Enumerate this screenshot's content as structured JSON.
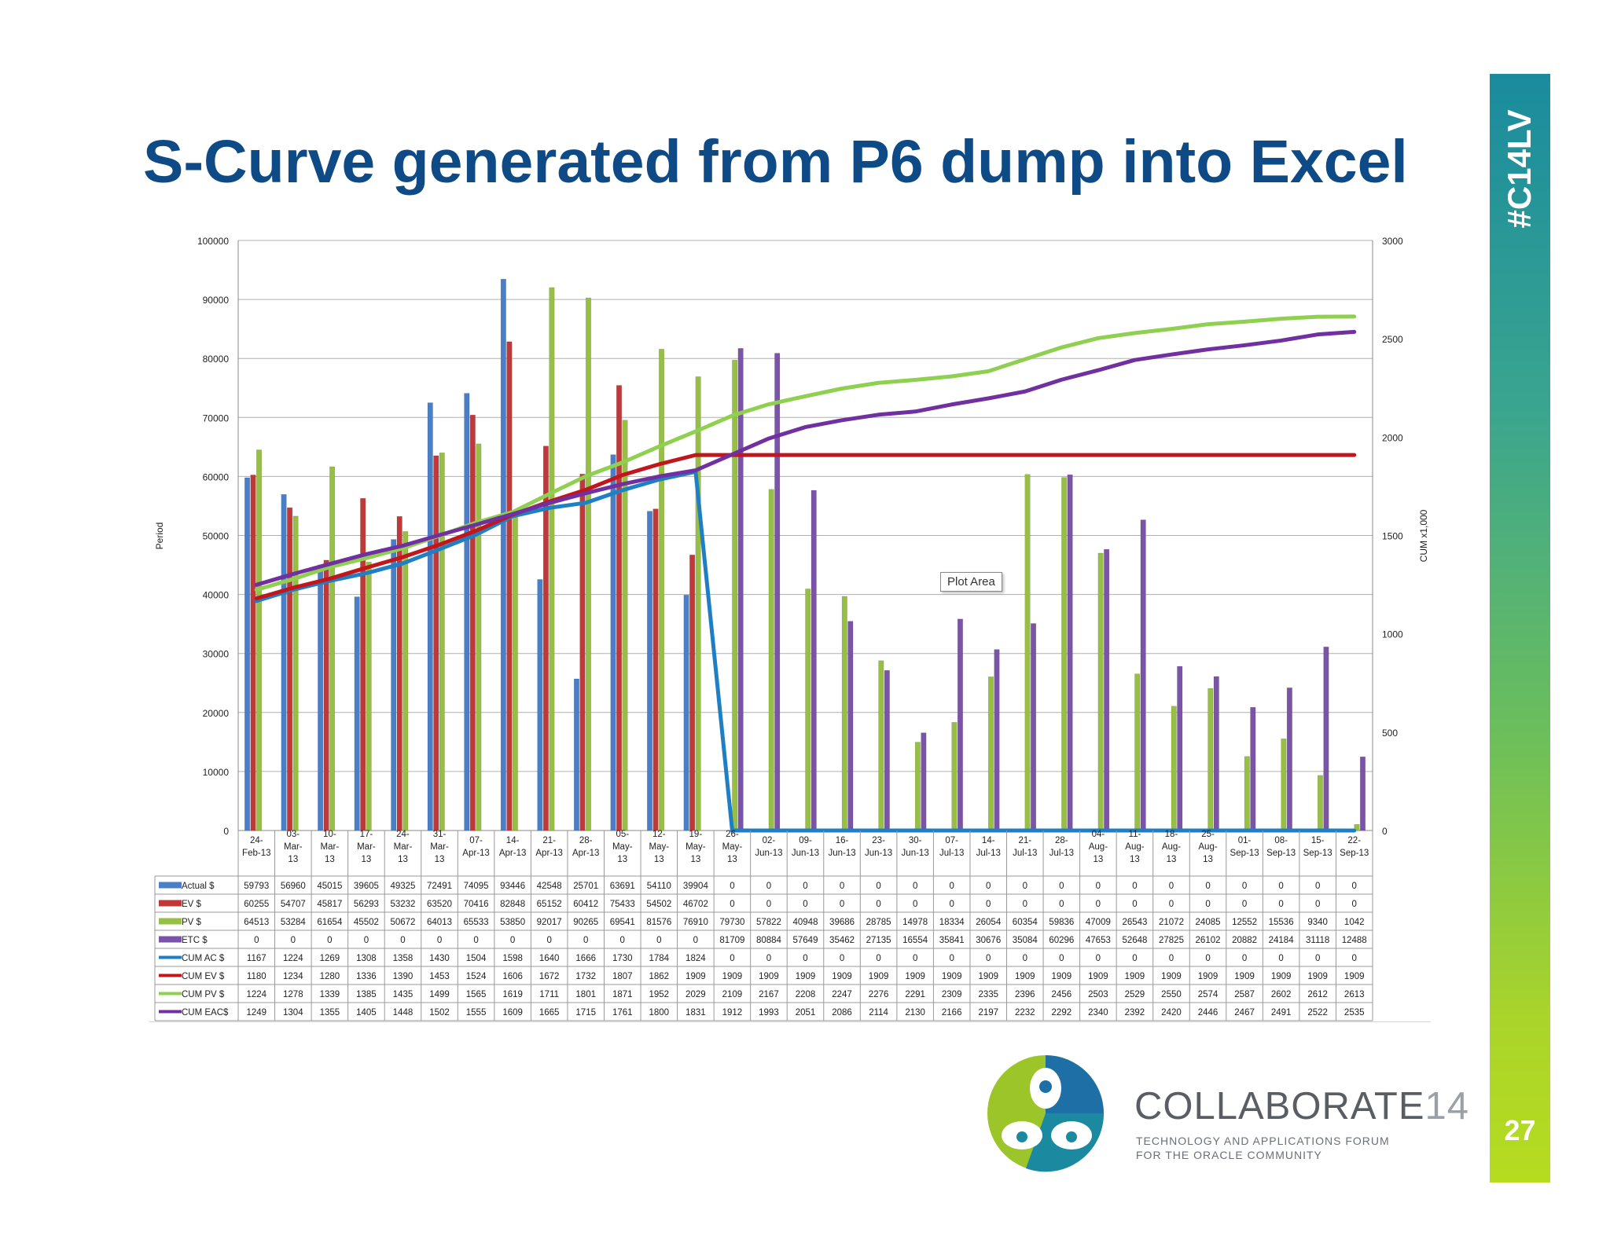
{
  "slide": {
    "title": "S-Curve generated from P6 dump into Excel",
    "hashtag": "#C14LV",
    "page_number": "27",
    "tooltip": "Plot Area"
  },
  "branding": {
    "name_main": "COLLABORATE",
    "name_num": "14",
    "tagline_1": "TECHNOLOGY AND APPLICATIONS FORUM",
    "tagline_2": "FOR THE ORACLE COMMUNITY"
  },
  "chart_data": {
    "type": "bar",
    "ylabel": "Period",
    "y2label": "CUM x1,000",
    "ylim": [
      0,
      100000
    ],
    "y2lim": [
      0,
      3000
    ],
    "yticks": [
      "0",
      "10000",
      "20000",
      "30000",
      "40000",
      "50000",
      "60000",
      "70000",
      "80000",
      "90000",
      "100000"
    ],
    "y2ticks": [
      "0",
      "500",
      "1000",
      "1500",
      "2000",
      "2500",
      "3000"
    ],
    "grid": true,
    "legend": "table-below",
    "categories": [
      [
        "24-",
        "Feb-13"
      ],
      [
        "03-",
        "Mar-",
        "13"
      ],
      [
        "10-",
        "Mar-",
        "13"
      ],
      [
        "17-",
        "Mar-",
        "13"
      ],
      [
        "24-",
        "Mar-",
        "13"
      ],
      [
        "31-",
        "Mar-",
        "13"
      ],
      [
        "07-",
        "Apr-13"
      ],
      [
        "14-",
        "Apr-13"
      ],
      [
        "21-",
        "Apr-13"
      ],
      [
        "28-",
        "Apr-13"
      ],
      [
        "05-",
        "May-",
        "13"
      ],
      [
        "12-",
        "May-",
        "13"
      ],
      [
        "19-",
        "May-",
        "13"
      ],
      [
        "26-",
        "May-",
        "13"
      ],
      [
        "02-",
        "Jun-13"
      ],
      [
        "09-",
        "Jun-13"
      ],
      [
        "16-",
        "Jun-13"
      ],
      [
        "23-",
        "Jun-13"
      ],
      [
        "30-",
        "Jun-13"
      ],
      [
        "07-",
        "Jul-13"
      ],
      [
        "14-",
        "Jul-13"
      ],
      [
        "21-",
        "Jul-13"
      ],
      [
        "28-",
        "Jul-13"
      ],
      [
        "04-",
        "Aug-",
        "13"
      ],
      [
        "11-",
        "Aug-",
        "13"
      ],
      [
        "18-",
        "Aug-",
        "13"
      ],
      [
        "25-",
        "Aug-",
        "13"
      ],
      [
        "01-",
        "Sep-13"
      ],
      [
        "08-",
        "Sep-13"
      ],
      [
        "15-",
        "Sep-13"
      ],
      [
        "22-",
        "Sep-13"
      ]
    ],
    "bar_series": [
      {
        "name": "Actual $",
        "color": "#4a7fc8",
        "values": [
          59793,
          56960,
          45015,
          39605,
          49325,
          72491,
          74095,
          93446,
          42548,
          25701,
          63691,
          54110,
          39904,
          0,
          0,
          0,
          0,
          0,
          0,
          0,
          0,
          0,
          0,
          0,
          0,
          0,
          0,
          0,
          0,
          0,
          0
        ]
      },
      {
        "name": "EV $",
        "color": "#c0393a",
        "values": [
          60255,
          54707,
          45817,
          56293,
          53232,
          63520,
          70416,
          82848,
          65152,
          60412,
          75433,
          54502,
          46702,
          0,
          0,
          0,
          0,
          0,
          0,
          0,
          0,
          0,
          0,
          0,
          0,
          0,
          0,
          0,
          0,
          0,
          0
        ]
      },
      {
        "name": "PV $",
        "color": "#98bf45",
        "values": [
          64513,
          53284,
          61654,
          45502,
          50672,
          64013,
          65533,
          53850,
          92017,
          90265,
          69541,
          81576,
          76910,
          79730,
          57822,
          40948,
          39686,
          28785,
          14978,
          18334,
          26054,
          60354,
          59836,
          47009,
          26543,
          21072,
          24085,
          12552,
          15536,
          9340,
          1042
        ]
      },
      {
        "name": "ETC $",
        "color": "#7b54a8",
        "values": [
          0,
          0,
          0,
          0,
          0,
          0,
          0,
          0,
          0,
          0,
          0,
          0,
          0,
          81709,
          80884,
          57649,
          35462,
          27135,
          16554,
          35841,
          30676,
          35084,
          60296,
          47653,
          52648,
          27825,
          26102,
          20882,
          24184,
          31118,
          12488
        ]
      }
    ],
    "line_series": [
      {
        "name": "CUM AC $",
        "color": "#1f7fc4",
        "values": [
          1167,
          1224,
          1269,
          1308,
          1358,
          1430,
          1504,
          1598,
          1640,
          1666,
          1730,
          1784,
          1824,
          0,
          0,
          0,
          0,
          0,
          0,
          0,
          0,
          0,
          0,
          0,
          0,
          0,
          0,
          0,
          0,
          0,
          0
        ]
      },
      {
        "name": "CUM EV $",
        "color": "#c0161c",
        "values": [
          1180,
          1234,
          1280,
          1336,
          1390,
          1453,
          1524,
          1606,
          1672,
          1732,
          1807,
          1862,
          1909,
          1909,
          1909,
          1909,
          1909,
          1909,
          1909,
          1909,
          1909,
          1909,
          1909,
          1909,
          1909,
          1909,
          1909,
          1909,
          1909,
          1909,
          1909
        ]
      },
      {
        "name": "CUM PV $",
        "color": "#8fd050",
        "values": [
          1224,
          1278,
          1339,
          1385,
          1435,
          1499,
          1565,
          1619,
          1711,
          1801,
          1871,
          1952,
          2029,
          2109,
          2167,
          2208,
          2247,
          2276,
          2291,
          2309,
          2335,
          2396,
          2456,
          2503,
          2529,
          2550,
          2574,
          2587,
          2602,
          2612,
          2613
        ]
      },
      {
        "name": "CUM EAC$",
        "color": "#7030a0",
        "values": [
          1249,
          1304,
          1355,
          1405,
          1448,
          1502,
          1555,
          1609,
          1665,
          1715,
          1761,
          1800,
          1831,
          1912,
          1993,
          2051,
          2086,
          2114,
          2130,
          2166,
          2197,
          2232,
          2292,
          2340,
          2392,
          2420,
          2446,
          2467,
          2491,
          2522,
          2535
        ]
      }
    ]
  }
}
